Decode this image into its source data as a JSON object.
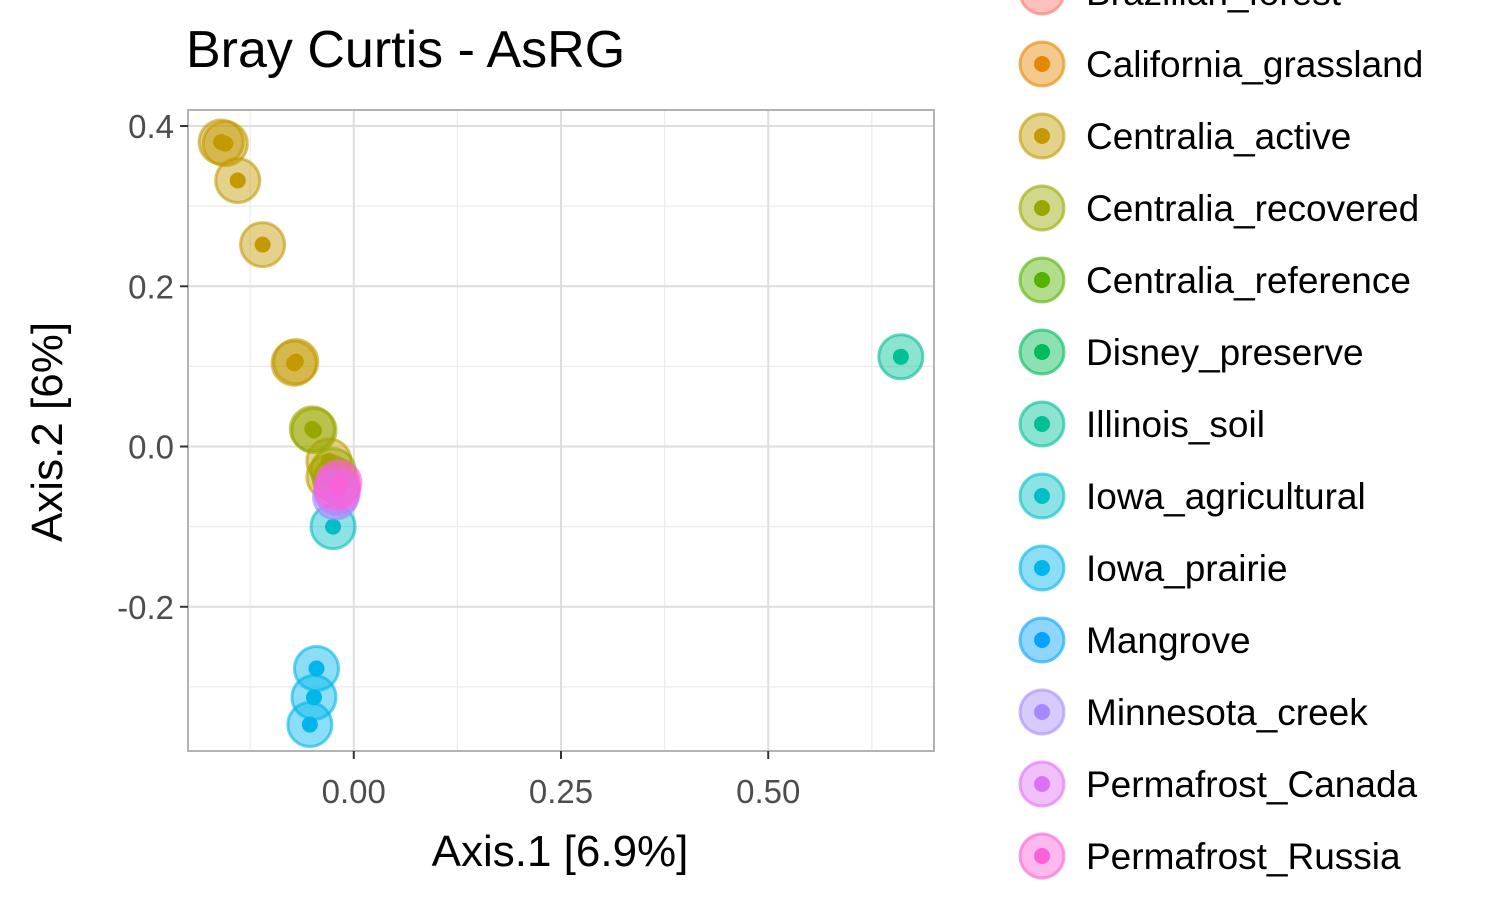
{
  "chart_data": {
    "type": "scatter",
    "title": "Bray Curtis - AsRG",
    "xlabel": "Axis.1   [6.9%]",
    "ylabel": "Axis.2   [6%]",
    "xlim": [
      -0.2,
      0.7
    ],
    "ylim": [
      -0.38,
      0.42
    ],
    "x_ticks": [
      0.0,
      0.25,
      0.5
    ],
    "x_tick_labels": [
      "0.00",
      "0.25",
      "0.50"
    ],
    "y_ticks": [
      -0.2,
      0.0,
      0.2,
      0.4
    ],
    "y_tick_labels": [
      "-0.2",
      "0.0",
      "0.2",
      "0.4"
    ],
    "grid": true,
    "legend_position": "right",
    "series": [
      {
        "name": "Brazilian_forest",
        "color": "#F8766D",
        "points": []
      },
      {
        "name": "California_grassland",
        "color": "#E58700",
        "points": []
      },
      {
        "name": "Centralia_active",
        "color": "#C49A00",
        "points": [
          {
            "x": -0.16,
            "y": 0.38
          },
          {
            "x": -0.155,
            "y": 0.378
          },
          {
            "x": -0.14,
            "y": 0.332
          },
          {
            "x": -0.11,
            "y": 0.252
          },
          {
            "x": -0.07,
            "y": 0.106
          },
          {
            "x": -0.072,
            "y": 0.104
          },
          {
            "x": -0.03,
            "y": -0.018
          },
          {
            "x": -0.03,
            "y": -0.038
          }
        ]
      },
      {
        "name": "Centralia_recovered",
        "color": "#99A800",
        "points": [
          {
            "x": -0.05,
            "y": 0.022
          },
          {
            "x": -0.048,
            "y": 0.02
          },
          {
            "x": -0.025,
            "y": -0.03
          },
          {
            "x": -0.022,
            "y": -0.042
          }
        ]
      },
      {
        "name": "Centralia_reference",
        "color": "#53B400",
        "points": []
      },
      {
        "name": "Disney_preserve",
        "color": "#00BC56",
        "points": []
      },
      {
        "name": "Illinois_soil",
        "color": "#00C094",
        "points": [
          {
            "x": 0.66,
            "y": 0.112
          }
        ]
      },
      {
        "name": "Iowa_agricultural",
        "color": "#00BFC4",
        "points": [
          {
            "x": -0.025,
            "y": -0.1
          }
        ]
      },
      {
        "name": "Iowa_prairie",
        "color": "#00B6EB",
        "points": [
          {
            "x": -0.045,
            "y": -0.277
          },
          {
            "x": -0.048,
            "y": -0.313
          },
          {
            "x": -0.053,
            "y": -0.347
          }
        ]
      },
      {
        "name": "Mangrove",
        "color": "#06A4FF",
        "points": []
      },
      {
        "name": "Minnesota_creek",
        "color": "#A58AFF",
        "points": [
          {
            "x": -0.022,
            "y": -0.063
          },
          {
            "x": -0.02,
            "y": -0.058
          }
        ]
      },
      {
        "name": "Permafrost_Canada",
        "color": "#DF70F8",
        "points": [
          {
            "x": -0.02,
            "y": -0.055
          }
        ]
      },
      {
        "name": "Permafrost_Russia",
        "color": "#FB61D7",
        "points": [
          {
            "x": -0.018,
            "y": -0.045
          },
          {
            "x": -0.02,
            "y": -0.05
          }
        ]
      }
    ]
  }
}
